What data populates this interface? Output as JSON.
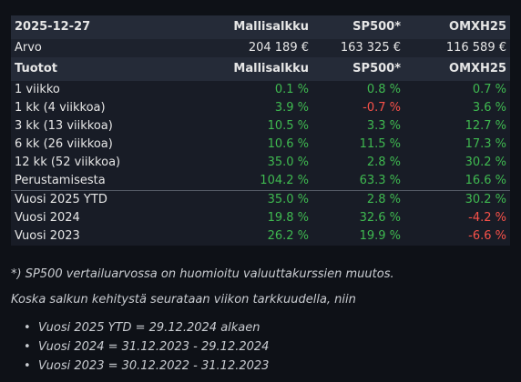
{
  "header1": {
    "date": "2025-12-27",
    "col1": "Mallisalkku",
    "col2": "SP500*",
    "col3": "OMXH25"
  },
  "value_row": {
    "label": "Arvo",
    "v1": "204 189 €",
    "v2": "163 325 €",
    "v3": "116 589 €"
  },
  "header2": {
    "label": "Tuotot",
    "col1": "Mallisalkku",
    "col2": "SP500*",
    "col3": "OMXH25"
  },
  "returns": [
    {
      "label": "1 viikko",
      "v1": "0.1 %",
      "v2": "0.8 %",
      "v3": "0.7 %"
    },
    {
      "label": "1 kk (4 viikkoa)",
      "v1": "3.9 %",
      "v2": "-0.7 %",
      "v3": "3.6 %"
    },
    {
      "label": "3 kk (13 viikkoa)",
      "v1": "10.5 %",
      "v2": "3.3 %",
      "v3": "12.7 %"
    },
    {
      "label": "6 kk (26 viikkoa)",
      "v1": "10.6 %",
      "v2": "11.5 %",
      "v3": "17.3 %"
    },
    {
      "label": "12 kk (52 viikkoa)",
      "v1": "35.0 %",
      "v2": "2.8 %",
      "v3": "30.2 %"
    },
    {
      "label": "Perustamisesta",
      "v1": "104.2 %",
      "v2": "63.3 %",
      "v3": "16.6 %"
    }
  ],
  "years": [
    {
      "label": "Vuosi 2025 YTD",
      "v1": "35.0 %",
      "v2": "2.8 %",
      "v3": "30.2 %"
    },
    {
      "label": "Vuosi 2024",
      "v1": "19.8 %",
      "v2": "32.6 %",
      "v3": "-4.2 %"
    },
    {
      "label": "Vuosi 2023",
      "v1": "26.2 %",
      "v2": "19.9 %",
      "v3": "-6.6 %"
    }
  ],
  "notes": {
    "footnote": "*) SP500 vertailuarvossa on huomioitu valuuttakurssien muutos.",
    "intro": "Koska salkun kehitystä seurataan viikon tarkkuudella, niin",
    "bullet_symbol": "•",
    "bullets": [
      "Vuosi 2025 YTD = 29.12.2024 alkaen",
      "Vuosi 2024 = 31.12.2023 - 29.12.2024",
      "Vuosi 2023 = 30.12.2022 - 31.12.2023"
    ]
  },
  "colors": {
    "positive": "#3fb950",
    "negative": "#f85149"
  }
}
